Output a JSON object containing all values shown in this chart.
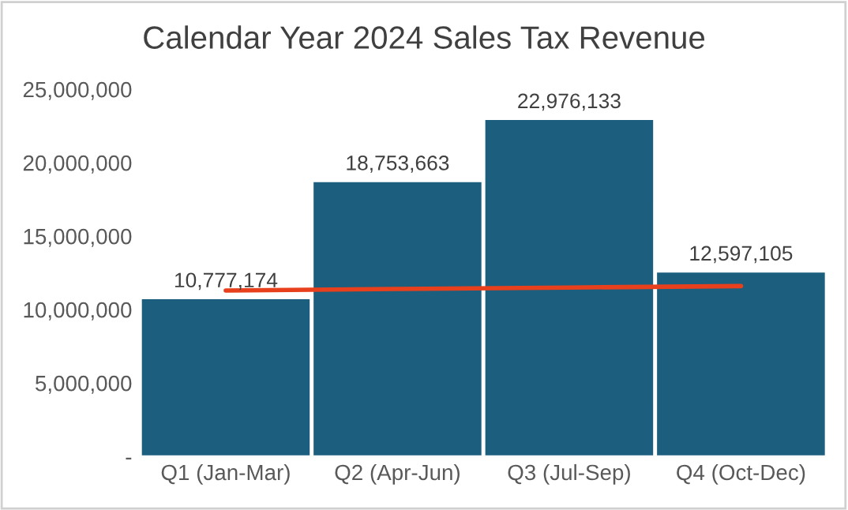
{
  "chart_data": {
    "type": "bar",
    "title": "Calendar Year 2024 Sales Tax Revenue",
    "categories": [
      "Q1 (Jan-Mar)",
      "Q2 (Apr-Jun)",
      "Q3 (Jul-Sep)",
      "Q4 (Oct-Dec)"
    ],
    "series": [
      {
        "color": "#1b5e7e",
        "values": [
          10777174,
          18753663,
          22976133,
          12597105
        ],
        "value_labels": [
          "10,777,174",
          "18,753,663",
          "22,976,133",
          "12,597,105"
        ]
      },
      {
        "type": "line",
        "color": "#e8401c",
        "values": [
          11300000,
          11400000,
          11500000,
          11600000
        ]
      }
    ],
    "ylim": [
      0,
      25000000
    ],
    "yticks": [
      {
        "value": 0,
        "label": "-"
      },
      {
        "value": 5000000,
        "label": "5,000,000"
      },
      {
        "value": 10000000,
        "label": "10,000,000"
      },
      {
        "value": 15000000,
        "label": "15,000,000"
      },
      {
        "value": 20000000,
        "label": "20,000,000"
      },
      {
        "value": 25000000,
        "label": "25,000,000"
      }
    ],
    "grid": false,
    "legend": false
  }
}
